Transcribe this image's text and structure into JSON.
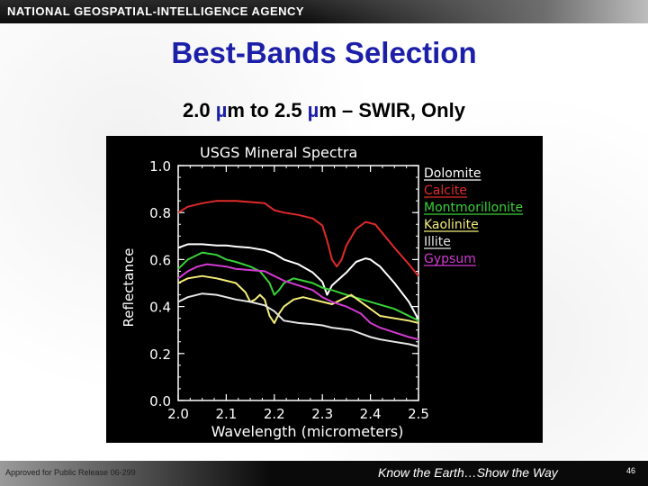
{
  "header": {
    "agency": "NATIONAL GEOSPATIAL-INTELLIGENCE AGENCY"
  },
  "slide": {
    "title": "Best-Bands Selection",
    "subtitle": {
      "part1": "2.0 ",
      "mu1": "µ",
      "part2": "m to 2.5 ",
      "mu2": "µ",
      "part3": "m – SWIR, Only"
    }
  },
  "footer": {
    "approved": "Approved for Public Release 06-299",
    "tagline": "Know the Earth…Show the Way",
    "page": "46"
  },
  "chart_data": {
    "type": "line",
    "title": "USGS Mineral Spectra",
    "xlabel": "Wavelength (micrometers)",
    "ylabel": "Reflectance",
    "xlim": [
      2.0,
      2.5
    ],
    "ylim": [
      0.0,
      1.0
    ],
    "xticks": [
      "2.0",
      "2.1",
      "2.2",
      "2.3",
      "2.4",
      "2.5"
    ],
    "yticks": [
      "0.0",
      "0.2",
      "0.4",
      "0.6",
      "0.8",
      "1.0"
    ],
    "grid": false,
    "legend": "top-right",
    "background": "#000000",
    "series": [
      {
        "name": "Dolomite",
        "color": "#ffffff",
        "x": [
          2.0,
          2.02,
          2.05,
          2.08,
          2.1,
          2.12,
          2.15,
          2.18,
          2.2,
          2.22,
          2.25,
          2.28,
          2.3,
          2.31,
          2.32,
          2.35,
          2.37,
          2.39,
          2.4,
          2.42,
          2.45,
          2.48,
          2.5
        ],
        "y": [
          0.65,
          0.665,
          0.665,
          0.66,
          0.66,
          0.655,
          0.65,
          0.64,
          0.625,
          0.6,
          0.58,
          0.545,
          0.505,
          0.45,
          0.49,
          0.545,
          0.59,
          0.605,
          0.6,
          0.57,
          0.5,
          0.42,
          0.345
        ]
      },
      {
        "name": "Calcite",
        "color": "#e02a2a",
        "x": [
          2.0,
          2.02,
          2.05,
          2.08,
          2.1,
          2.12,
          2.15,
          2.18,
          2.2,
          2.22,
          2.25,
          2.28,
          2.3,
          2.31,
          2.32,
          2.33,
          2.34,
          2.35,
          2.37,
          2.39,
          2.41,
          2.43,
          2.45,
          2.48,
          2.5
        ],
        "y": [
          0.8,
          0.825,
          0.84,
          0.85,
          0.85,
          0.85,
          0.845,
          0.84,
          0.81,
          0.8,
          0.79,
          0.775,
          0.745,
          0.68,
          0.6,
          0.57,
          0.6,
          0.66,
          0.73,
          0.76,
          0.75,
          0.7,
          0.65,
          0.58,
          0.53
        ]
      },
      {
        "name": "Montmorillonite",
        "color": "#39d239",
        "x": [
          2.0,
          2.02,
          2.05,
          2.08,
          2.1,
          2.12,
          2.15,
          2.17,
          2.19,
          2.2,
          2.21,
          2.22,
          2.24,
          2.26,
          2.28,
          2.3,
          2.32,
          2.35,
          2.4,
          2.45,
          2.5
        ],
        "y": [
          0.56,
          0.6,
          0.63,
          0.62,
          0.6,
          0.59,
          0.57,
          0.55,
          0.5,
          0.45,
          0.47,
          0.5,
          0.52,
          0.51,
          0.5,
          0.48,
          0.47,
          0.45,
          0.42,
          0.39,
          0.34
        ]
      },
      {
        "name": "Kaolinite",
        "color": "#f5ee7a",
        "x": [
          2.0,
          2.02,
          2.05,
          2.08,
          2.1,
          2.12,
          2.14,
          2.15,
          2.16,
          2.17,
          2.18,
          2.19,
          2.2,
          2.21,
          2.22,
          2.24,
          2.26,
          2.28,
          2.3,
          2.32,
          2.34,
          2.36,
          2.38,
          2.4,
          2.42,
          2.45,
          2.48,
          2.5
        ],
        "y": [
          0.5,
          0.52,
          0.53,
          0.52,
          0.51,
          0.5,
          0.46,
          0.42,
          0.43,
          0.45,
          0.43,
          0.36,
          0.33,
          0.37,
          0.4,
          0.43,
          0.44,
          0.43,
          0.42,
          0.41,
          0.43,
          0.45,
          0.42,
          0.39,
          0.36,
          0.35,
          0.34,
          0.33
        ]
      },
      {
        "name": "Illite",
        "color": "#e6e6e6",
        "x": [
          2.0,
          2.02,
          2.05,
          2.08,
          2.1,
          2.12,
          2.15,
          2.18,
          2.2,
          2.22,
          2.25,
          2.28,
          2.3,
          2.32,
          2.34,
          2.36,
          2.38,
          2.4,
          2.42,
          2.45,
          2.48,
          2.5
        ],
        "y": [
          0.42,
          0.44,
          0.455,
          0.45,
          0.44,
          0.43,
          0.42,
          0.405,
          0.38,
          0.34,
          0.33,
          0.325,
          0.32,
          0.31,
          0.305,
          0.3,
          0.285,
          0.27,
          0.26,
          0.25,
          0.24,
          0.23
        ]
      },
      {
        "name": "Gypsum",
        "color": "#d23ad2",
        "x": [
          2.0,
          2.02,
          2.04,
          2.06,
          2.08,
          2.1,
          2.12,
          2.15,
          2.18,
          2.2,
          2.22,
          2.25,
          2.28,
          2.3,
          2.32,
          2.35,
          2.38,
          2.4,
          2.42,
          2.45,
          2.48,
          2.5
        ],
        "y": [
          0.52,
          0.55,
          0.57,
          0.58,
          0.575,
          0.57,
          0.56,
          0.555,
          0.55,
          0.53,
          0.51,
          0.49,
          0.47,
          0.44,
          0.42,
          0.4,
          0.37,
          0.33,
          0.31,
          0.29,
          0.27,
          0.26
        ]
      }
    ]
  }
}
